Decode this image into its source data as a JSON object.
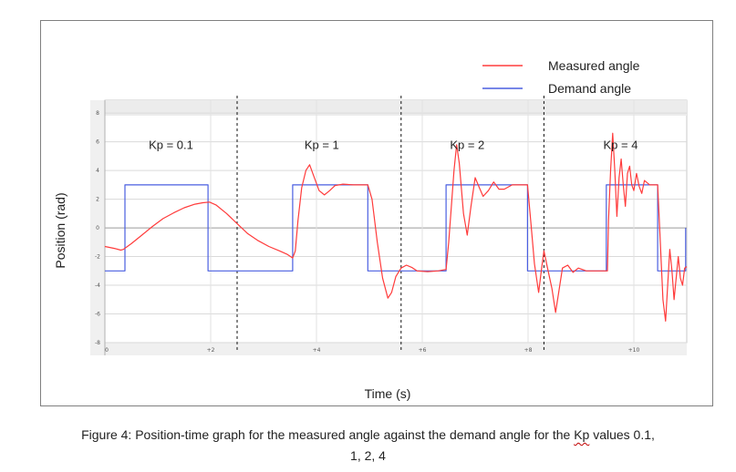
{
  "chart_data": {
    "type": "line",
    "xlabel": "Time (s)",
    "ylabel": "Position (rad)",
    "xlim": [
      0,
      11
    ],
    "ylim": [
      -8,
      8.9
    ],
    "x_ticks": [
      {
        "value": 0,
        "label": "0"
      },
      {
        "value": 2,
        "label": "+2"
      },
      {
        "value": 4,
        "label": "+4"
      },
      {
        "value": 6,
        "label": "+6"
      },
      {
        "value": 8,
        "label": "+8"
      },
      {
        "value": 10,
        "label": "+10"
      }
    ],
    "y_ticks": [
      {
        "value": 8,
        "label": "8"
      },
      {
        "value": 6,
        "label": "6"
      },
      {
        "value": 4,
        "label": "4"
      },
      {
        "value": 2,
        "label": "2"
      },
      {
        "value": 0,
        "label": "0"
      },
      {
        "value": -2,
        "label": "-2"
      },
      {
        "value": -4,
        "label": "-4"
      },
      {
        "value": -6,
        "label": "-6"
      },
      {
        "value": -8,
        "label": "-8"
      }
    ],
    "grid": true,
    "legend_position": "top-right",
    "series": [
      {
        "name": "Measured angle",
        "color": "#ff3b3b",
        "points": [
          [
            0.0,
            -1.3
          ],
          [
            0.2,
            -1.45
          ],
          [
            0.3,
            -1.55
          ],
          [
            0.35,
            -1.5
          ],
          [
            0.5,
            -1.1
          ],
          [
            0.7,
            -0.5
          ],
          [
            0.9,
            0.1
          ],
          [
            1.1,
            0.65
          ],
          [
            1.3,
            1.05
          ],
          [
            1.5,
            1.4
          ],
          [
            1.7,
            1.65
          ],
          [
            1.85,
            1.75
          ],
          [
            1.98,
            1.8
          ],
          [
            2.1,
            1.6
          ],
          [
            2.3,
            1.0
          ],
          [
            2.5,
            0.3
          ],
          [
            2.7,
            -0.4
          ],
          [
            2.9,
            -0.9
          ],
          [
            3.1,
            -1.3
          ],
          [
            3.3,
            -1.6
          ],
          [
            3.45,
            -1.85
          ],
          [
            3.55,
            -2.1
          ],
          [
            3.6,
            -1.6
          ],
          [
            3.65,
            0.5
          ],
          [
            3.72,
            2.8
          ],
          [
            3.8,
            4.0
          ],
          [
            3.87,
            4.4
          ],
          [
            3.95,
            3.6
          ],
          [
            4.05,
            2.6
          ],
          [
            4.15,
            2.3
          ],
          [
            4.25,
            2.6
          ],
          [
            4.35,
            2.95
          ],
          [
            4.5,
            3.05
          ],
          [
            4.7,
            3.0
          ],
          [
            4.97,
            3.0
          ],
          [
            5.05,
            2.0
          ],
          [
            5.15,
            -1.0
          ],
          [
            5.25,
            -3.5
          ],
          [
            5.35,
            -4.9
          ],
          [
            5.42,
            -4.5
          ],
          [
            5.5,
            -3.4
          ],
          [
            5.6,
            -2.8
          ],
          [
            5.7,
            -2.6
          ],
          [
            5.8,
            -2.75
          ],
          [
            5.9,
            -3.0
          ],
          [
            6.1,
            -3.05
          ],
          [
            6.3,
            -3.0
          ],
          [
            6.45,
            -2.9
          ],
          [
            6.5,
            -1.0
          ],
          [
            6.55,
            1.5
          ],
          [
            6.6,
            4.0
          ],
          [
            6.65,
            5.8
          ],
          [
            6.7,
            4.5
          ],
          [
            6.78,
            1.0
          ],
          [
            6.85,
            -0.5
          ],
          [
            6.92,
            1.5
          ],
          [
            7.0,
            3.5
          ],
          [
            7.08,
            2.8
          ],
          [
            7.15,
            2.2
          ],
          [
            7.25,
            2.6
          ],
          [
            7.35,
            3.2
          ],
          [
            7.45,
            2.7
          ],
          [
            7.55,
            2.7
          ],
          [
            7.7,
            3.0
          ],
          [
            7.99,
            3.0
          ],
          [
            8.05,
            0.5
          ],
          [
            8.12,
            -2.5
          ],
          [
            8.2,
            -4.5
          ],
          [
            8.25,
            -3.0
          ],
          [
            8.3,
            -1.6
          ],
          [
            8.38,
            -3.0
          ],
          [
            8.45,
            -4.2
          ],
          [
            8.52,
            -5.9
          ],
          [
            8.58,
            -4.5
          ],
          [
            8.65,
            -2.8
          ],
          [
            8.75,
            -2.6
          ],
          [
            8.85,
            -3.1
          ],
          [
            8.95,
            -2.8
          ],
          [
            9.1,
            -3.0
          ],
          [
            9.5,
            -3.0
          ],
          [
            9.52,
            0.5
          ],
          [
            9.56,
            4.0
          ],
          [
            9.6,
            6.6
          ],
          [
            9.64,
            4.0
          ],
          [
            9.68,
            0.8
          ],
          [
            9.72,
            3.5
          ],
          [
            9.76,
            4.8
          ],
          [
            9.8,
            3.0
          ],
          [
            9.84,
            1.5
          ],
          [
            9.88,
            3.8
          ],
          [
            9.92,
            4.3
          ],
          [
            9.96,
            3.0
          ],
          [
            10.0,
            2.6
          ],
          [
            10.05,
            3.8
          ],
          [
            10.1,
            2.9
          ],
          [
            10.15,
            2.4
          ],
          [
            10.2,
            3.3
          ],
          [
            10.3,
            3.0
          ],
          [
            10.45,
            3.0
          ],
          [
            10.5,
            -1.0
          ],
          [
            10.55,
            -5.0
          ],
          [
            10.6,
            -6.5
          ],
          [
            10.64,
            -4.0
          ],
          [
            10.68,
            -1.5
          ],
          [
            10.72,
            -3.0
          ],
          [
            10.76,
            -5.0
          ],
          [
            10.8,
            -3.5
          ],
          [
            10.84,
            -2.0
          ],
          [
            10.88,
            -3.5
          ],
          [
            10.92,
            -4.0
          ],
          [
            10.96,
            -2.8
          ],
          [
            11.0,
            -2.7
          ]
        ]
      },
      {
        "name": "Demand angle",
        "color": "#4a5fe0",
        "points": [
          [
            0.0,
            -3.0
          ],
          [
            0.38,
            -3.0
          ],
          [
            0.38,
            3.0
          ],
          [
            1.95,
            3.0
          ],
          [
            1.95,
            -3.0
          ],
          [
            3.55,
            -3.0
          ],
          [
            3.55,
            3.0
          ],
          [
            4.97,
            3.0
          ],
          [
            4.97,
            -3.0
          ],
          [
            6.45,
            -3.0
          ],
          [
            6.45,
            3.0
          ],
          [
            7.99,
            3.0
          ],
          [
            7.99,
            -3.0
          ],
          [
            9.48,
            -3.0
          ],
          [
            9.48,
            3.0
          ],
          [
            10.45,
            3.0
          ],
          [
            10.45,
            -3.0
          ],
          [
            10.98,
            -3.0
          ],
          [
            10.98,
            0.0
          ]
        ]
      }
    ],
    "annotations": [
      {
        "label": "Kp = 0.1",
        "x": 1.25,
        "y": 5.5
      },
      {
        "label": "Kp = 1",
        "x": 4.1,
        "y": 5.5
      },
      {
        "label": "Kp = 2",
        "x": 6.85,
        "y": 5.5
      },
      {
        "label": "Kp = 4",
        "x": 9.75,
        "y": 5.5
      }
    ],
    "dividers": [
      2.5,
      5.6,
      8.3
    ]
  },
  "caption": {
    "line1_prefix": "Figure 4: Position-time graph for the measured angle against the demand angle for the ",
    "line1_kp": "Kp",
    "line1_suffix": " values 0.1,",
    "line2": "1, 2, 4"
  }
}
